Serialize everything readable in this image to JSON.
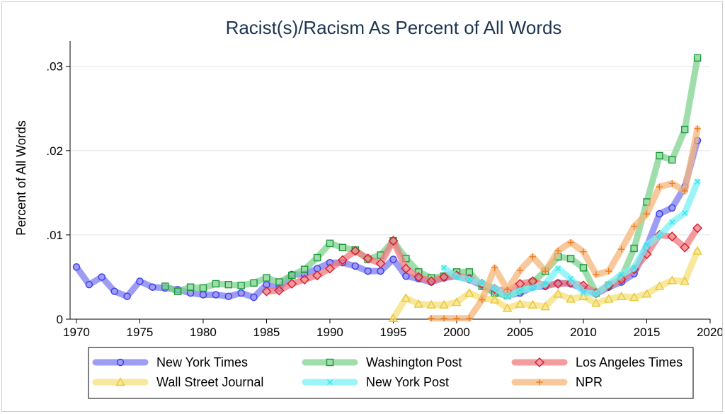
{
  "chart_data": {
    "type": "line",
    "title": "Racist(s)/Racism As Percent of All Words",
    "xlabel": "",
    "ylabel": "Percent of All Words",
    "xlim": [
      1969.5,
      2020
    ],
    "ylim": [
      0,
      0.033
    ],
    "x_ticks": [
      1970,
      1975,
      1980,
      1985,
      1990,
      1995,
      2000,
      2005,
      2010,
      2015,
      2020
    ],
    "y_ticks": [
      0,
      0.01,
      0.02,
      0.03
    ],
    "y_tick_labels": [
      "0",
      ".01",
      ".02",
      ".03"
    ],
    "grid": "horizontal",
    "legend_position": "bottom",
    "series": [
      {
        "name": "New York Times",
        "color": "#3a3af0",
        "band_color": "#7c7cf0",
        "marker": "circle",
        "x": [
          1970,
          1971,
          1972,
          1973,
          1974,
          1975,
          1976,
          1977,
          1978,
          1979,
          1980,
          1981,
          1982,
          1983,
          1984,
          1985,
          1986,
          1987,
          1988,
          1989,
          1990,
          1991,
          1992,
          1993,
          1994,
          1995,
          1996,
          1997,
          1998,
          1999,
          2000,
          2001,
          2002,
          2003,
          2004,
          2005,
          2006,
          2007,
          2008,
          2009,
          2010,
          2011,
          2012,
          2013,
          2014,
          2015,
          2016,
          2017,
          2018,
          2019
        ],
        "values": [
          0.0062,
          0.0041,
          0.005,
          0.0033,
          0.0027,
          0.0045,
          0.0038,
          0.0037,
          0.0035,
          0.0031,
          0.0029,
          0.0029,
          0.0027,
          0.0031,
          0.0026,
          0.0041,
          0.0037,
          0.0053,
          0.0053,
          0.006,
          0.0067,
          0.0067,
          0.0063,
          0.0057,
          0.0057,
          0.0071,
          0.0051,
          0.0048,
          0.0044,
          0.0049,
          0.0051,
          0.0047,
          0.004,
          0.0032,
          0.0028,
          0.0031,
          0.0038,
          0.0039,
          0.0043,
          0.0042,
          0.0036,
          0.003,
          0.0038,
          0.0044,
          0.0054,
          0.0086,
          0.0125,
          0.0132,
          0.0157,
          0.0212
        ]
      },
      {
        "name": "Washington Post",
        "color": "#1a9a3a",
        "band_color": "#7fd18f",
        "marker": "square",
        "x": [
          1977,
          1978,
          1979,
          1980,
          1981,
          1982,
          1983,
          1984,
          1985,
          1986,
          1987,
          1988,
          1989,
          1990,
          1991,
          1992,
          1993,
          1994,
          1995,
          1996,
          1997,
          1998,
          1999,
          2000,
          2001,
          2002,
          2003,
          2004,
          2005,
          2006,
          2007,
          2008,
          2009,
          2010,
          2011,
          2012,
          2013,
          2014,
          2015,
          2016,
          2017,
          2018,
          2019
        ],
        "values": [
          0.0039,
          0.0033,
          0.0038,
          0.0037,
          0.0042,
          0.0041,
          0.004,
          0.0043,
          0.0049,
          0.0044,
          0.0052,
          0.0059,
          0.0073,
          0.009,
          0.0085,
          0.0082,
          0.0071,
          0.0076,
          0.0093,
          0.0072,
          0.0056,
          0.0049,
          0.0051,
          0.0056,
          0.0056,
          0.0039,
          0.0031,
          0.0028,
          0.0034,
          0.0044,
          0.0057,
          0.0074,
          0.0072,
          0.0061,
          0.0031,
          0.004,
          0.0049,
          0.0084,
          0.0139,
          0.0194,
          0.0189,
          0.0225,
          0.031
        ]
      },
      {
        "name": "Los Angeles Times",
        "color": "#d81a2a",
        "band_color": "#f07a80",
        "marker": "diamond",
        "x": [
          1985,
          1986,
          1987,
          1988,
          1989,
          1990,
          1991,
          1992,
          1993,
          1994,
          1995,
          1996,
          1997,
          1998,
          1999,
          2000,
          2001,
          2002,
          2003,
          2004,
          2005,
          2006,
          2007,
          2008,
          2009,
          2010,
          2011,
          2012,
          2013,
          2014,
          2015,
          2016,
          2017,
          2018,
          2019
        ],
        "values": [
          0.0033,
          0.0034,
          0.0042,
          0.0047,
          0.0052,
          0.006,
          0.007,
          0.0081,
          0.0072,
          0.0066,
          0.0093,
          0.006,
          0.005,
          0.0045,
          0.005,
          0.0052,
          0.0048,
          0.0042,
          0.0036,
          0.0033,
          0.0042,
          0.0045,
          0.004,
          0.0042,
          0.0043,
          0.004,
          0.0031,
          0.004,
          0.0047,
          0.0059,
          0.0077,
          0.01,
          0.0098,
          0.0085,
          0.0108
        ]
      },
      {
        "name": "Wall Street Journal",
        "color": "#e9c638",
        "band_color": "#f4e07a",
        "marker": "triangle",
        "x": [
          1995,
          1996,
          1997,
          1998,
          1999,
          2000,
          2001,
          2002,
          2003,
          2004,
          2005,
          2006,
          2007,
          2008,
          2009,
          2010,
          2011,
          2012,
          2013,
          2014,
          2015,
          2016,
          2017,
          2018,
          2019
        ],
        "values": [
          0.0001,
          0.0025,
          0.0018,
          0.0017,
          0.0017,
          0.002,
          0.0031,
          0.0025,
          0.0023,
          0.0013,
          0.0018,
          0.0017,
          0.0015,
          0.003,
          0.0024,
          0.0027,
          0.0019,
          0.0024,
          0.0027,
          0.0026,
          0.003,
          0.0039,
          0.0046,
          0.0045,
          0.0081
        ]
      },
      {
        "name": "New York Post",
        "color": "#2ee6f0",
        "band_color": "#7af2f6",
        "marker": "x",
        "x": [
          1999,
          2000,
          2001,
          2002,
          2003,
          2004,
          2005,
          2006,
          2007,
          2008,
          2009,
          2010,
          2011,
          2012,
          2013,
          2014,
          2015,
          2016,
          2017,
          2018,
          2019
        ],
        "values": [
          0.0061,
          0.005,
          0.0047,
          0.0043,
          0.0037,
          0.0027,
          0.0034,
          0.0037,
          0.0042,
          0.006,
          0.0048,
          0.0032,
          0.003,
          0.0042,
          0.0053,
          0.0061,
          0.0088,
          0.0099,
          0.0115,
          0.0126,
          0.0163
        ]
      },
      {
        "name": "NPR",
        "color": "#f07a1a",
        "band_color": "#f6b67a",
        "marker": "plus",
        "x": [
          1998,
          1999,
          2000,
          2001,
          2002,
          2003,
          2004,
          2005,
          2006,
          2007,
          2008,
          2009,
          2010,
          2011,
          2012,
          2013,
          2014,
          2015,
          2016,
          2017,
          2018,
          2019
        ],
        "values": [
          0.0001,
          0.0001,
          0.0001,
          0.0001,
          0.0023,
          0.0061,
          0.0035,
          0.0058,
          0.0074,
          0.0057,
          0.0081,
          0.0091,
          0.008,
          0.0053,
          0.0057,
          0.0083,
          0.011,
          0.0125,
          0.0157,
          0.0161,
          0.0152,
          0.0226
        ]
      }
    ]
  }
}
